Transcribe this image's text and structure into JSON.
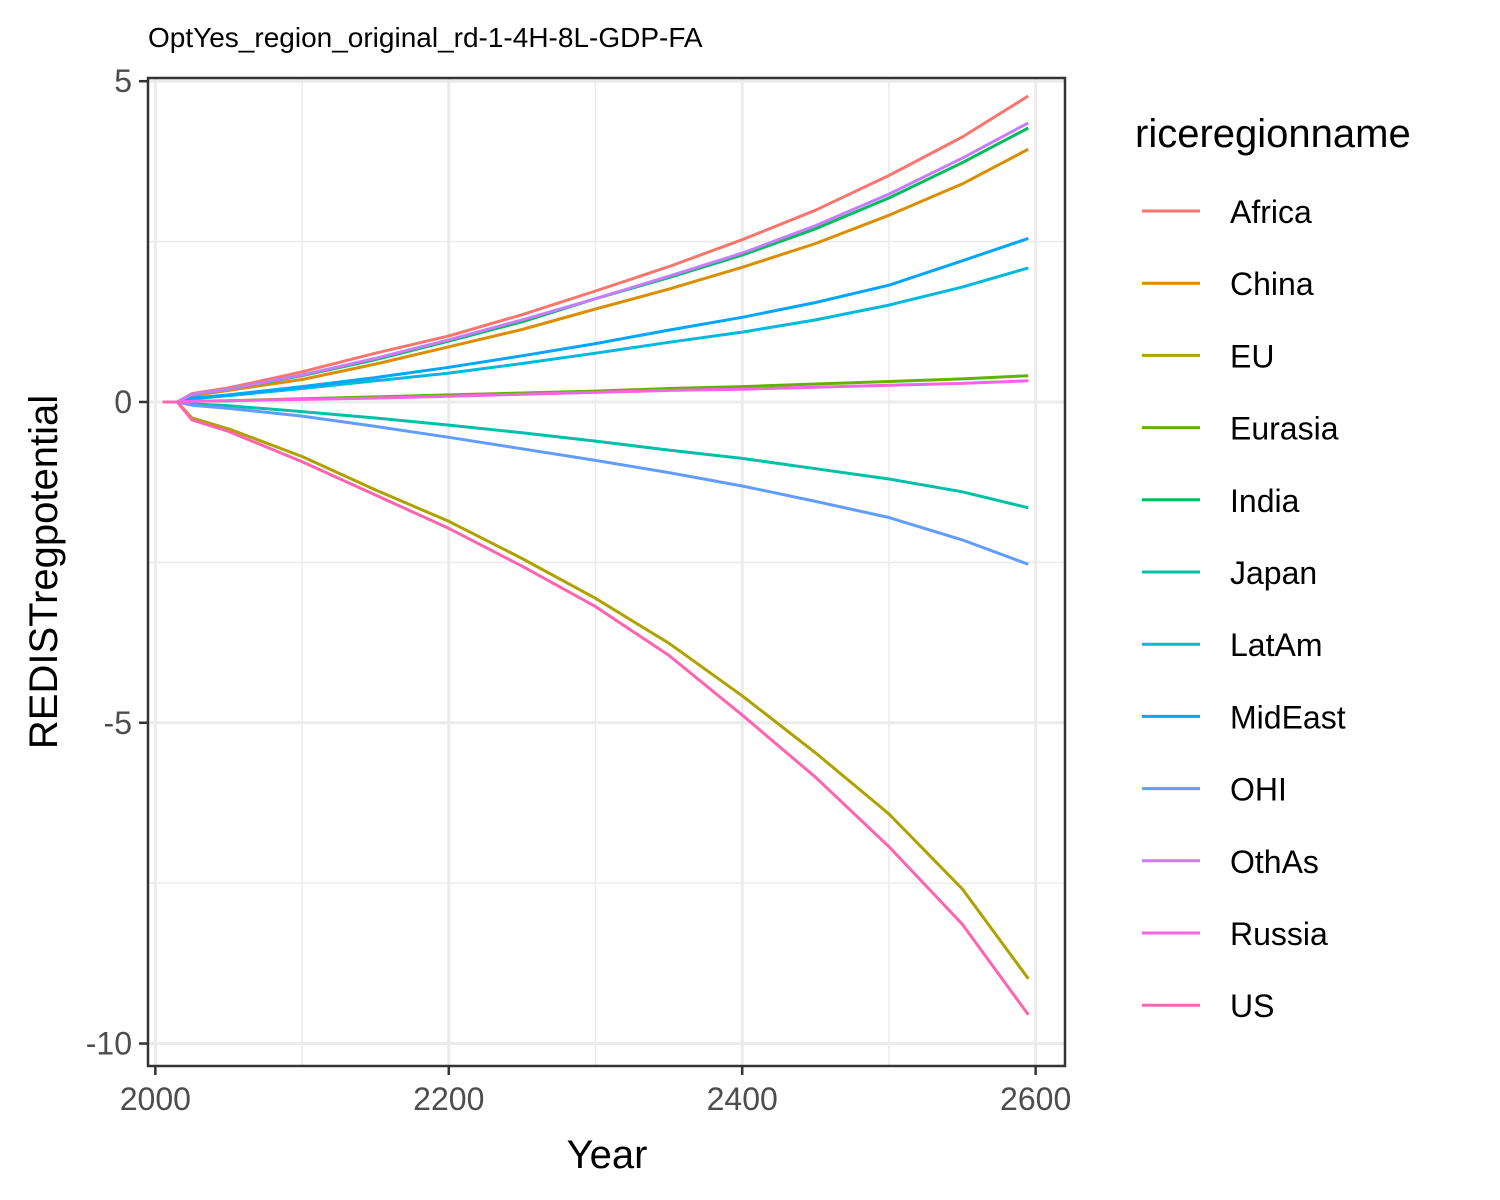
{
  "chart_data": {
    "type": "line",
    "title": "OptYes_region_original_rd-1-4H-8L-GDP-FA",
    "xlabel": "Year",
    "ylabel": "REDISTregpotential",
    "xlim": [
      1995,
      2620
    ],
    "ylim": [
      -10.35,
      5.05
    ],
    "x_ticks": [
      2000,
      2200,
      2400,
      2600
    ],
    "x_tick_labels": [
      "2000",
      "2200",
      "2400",
      "2600"
    ],
    "y_ticks": [
      -10,
      -5,
      0,
      5
    ],
    "y_tick_labels": [
      "-10",
      "-5",
      "0",
      "5"
    ],
    "grid": true,
    "legend": {
      "title": "riceregionname",
      "position": "right"
    },
    "x": [
      2005,
      2015,
      2025,
      2050,
      2100,
      2150,
      2200,
      2250,
      2300,
      2350,
      2400,
      2450,
      2500,
      2550,
      2595
    ],
    "series": [
      {
        "name": "Africa",
        "color": "#F8766D",
        "values": [
          0,
          0,
          0.13,
          0.22,
          0.47,
          0.76,
          1.03,
          1.36,
          1.73,
          2.11,
          2.53,
          2.99,
          3.53,
          4.13,
          4.77
        ]
      },
      {
        "name": "China",
        "color": "#DB8E00",
        "values": [
          0,
          0,
          0.1,
          0.18,
          0.35,
          0.59,
          0.86,
          1.13,
          1.45,
          1.76,
          2.1,
          2.47,
          2.91,
          3.4,
          3.94
        ]
      },
      {
        "name": "EU",
        "color": "#AEA200",
        "values": [
          0,
          0,
          -0.25,
          -0.42,
          -0.85,
          -1.37,
          -1.86,
          -2.44,
          -3.06,
          -3.76,
          -4.58,
          -5.47,
          -6.42,
          -7.59,
          -8.99
        ]
      },
      {
        "name": "Eurasia",
        "color": "#64B200",
        "values": [
          0,
          0,
          0.01,
          0.02,
          0.05,
          0.08,
          0.11,
          0.14,
          0.17,
          0.21,
          0.24,
          0.28,
          0.32,
          0.36,
          0.41
        ]
      },
      {
        "name": "India",
        "color": "#00BD5C",
        "values": [
          0,
          0,
          0.12,
          0.2,
          0.41,
          0.66,
          0.95,
          1.25,
          1.61,
          1.94,
          2.29,
          2.7,
          3.18,
          3.73,
          4.27
        ]
      },
      {
        "name": "Japan",
        "color": "#00C1A7",
        "values": [
          0,
          0,
          -0.03,
          -0.06,
          -0.15,
          -0.25,
          -0.36,
          -0.48,
          -0.61,
          -0.75,
          -0.88,
          -1.04,
          -1.2,
          -1.4,
          -1.65
        ]
      },
      {
        "name": "LatAm",
        "color": "#00BADE",
        "values": [
          0,
          0,
          0.05,
          0.1,
          0.21,
          0.33,
          0.45,
          0.6,
          0.76,
          0.93,
          1.09,
          1.28,
          1.51,
          1.79,
          2.09
        ]
      },
      {
        "name": "MidEast",
        "color": "#00A6FF",
        "values": [
          0,
          0,
          0.06,
          0.11,
          0.24,
          0.38,
          0.54,
          0.72,
          0.91,
          1.12,
          1.32,
          1.55,
          1.82,
          2.2,
          2.55
        ]
      },
      {
        "name": "OHI",
        "color": "#619CFF",
        "values": [
          0,
          0,
          -0.05,
          -0.1,
          -0.22,
          -0.38,
          -0.55,
          -0.73,
          -0.91,
          -1.1,
          -1.31,
          -1.55,
          -1.8,
          -2.15,
          -2.53
        ]
      },
      {
        "name": "OthAs",
        "color": "#C77CFF",
        "values": [
          0,
          0,
          0.12,
          0.2,
          0.42,
          0.68,
          0.97,
          1.28,
          1.61,
          1.96,
          2.32,
          2.75,
          3.24,
          3.8,
          4.35
        ]
      },
      {
        "name": "Russia",
        "color": "#F564E3",
        "values": [
          0,
          0,
          0.01,
          0.02,
          0.04,
          0.06,
          0.09,
          0.12,
          0.15,
          0.18,
          0.2,
          0.23,
          0.26,
          0.29,
          0.33
        ]
      },
      {
        "name": "US",
        "color": "#FF64B0",
        "values": [
          0,
          0,
          -0.28,
          -0.46,
          -0.93,
          -1.45,
          -1.97,
          -2.56,
          -3.19,
          -3.95,
          -4.88,
          -5.85,
          -6.93,
          -8.14,
          -9.55
        ]
      }
    ]
  }
}
